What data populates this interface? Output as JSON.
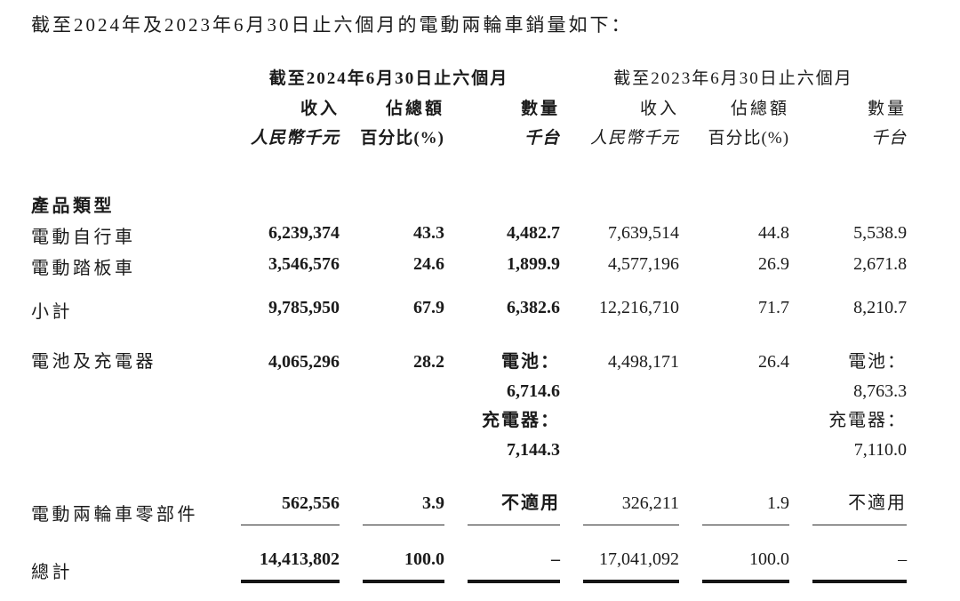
{
  "title": "截至2024年及2023年6月30日止六個月的電動兩輪車銷量如下：",
  "colors": {
    "text": "#1b1b1b",
    "background": "#ffffff"
  },
  "table": {
    "periods": [
      {
        "label": "截至2024年6月30日止六個月"
      },
      {
        "label": "截至2023年6月30日止六個月"
      }
    ],
    "col_headers": [
      "收入",
      "佔總額",
      "數量",
      "收入",
      "佔總額",
      "數量"
    ],
    "unit_headers": [
      "人民幣千元",
      "百分比(%)",
      "千台",
      "人民幣千元",
      "百分比(%)",
      "千台"
    ],
    "section_label": "產品類型",
    "row_ebike": {
      "label": "電動自行車",
      "c": [
        "6,239,374",
        "43.3",
        "4,482.7",
        "7,639,514",
        "44.8",
        "5,538.9"
      ]
    },
    "row_escooter": {
      "label": "電動踏板車",
      "c": [
        "3,546,576",
        "24.6",
        "1,899.9",
        "4,577,196",
        "26.9",
        "2,671.8"
      ]
    },
    "row_subtotal": {
      "label": "小計",
      "c": [
        "9,785,950",
        "67.9",
        "6,382.6",
        "12,216,710",
        "71.7",
        "8,210.7"
      ]
    },
    "row_battery": {
      "label": "電池及充電器",
      "rev2024": "4,065,296",
      "pct2024": "28.2",
      "vol2024": [
        "電池：",
        "6,714.6",
        "充電器：",
        "7,144.3"
      ],
      "rev2023": "4,498,171",
      "pct2023": "26.4",
      "vol2023": [
        "電池：",
        "8,763.3",
        "充電器：",
        "7,110.0"
      ]
    },
    "row_parts": {
      "label": "電動兩輪車零部件",
      "c": [
        "562,556",
        "3.9",
        "不適用",
        "326,211",
        "1.9",
        "不適用"
      ]
    },
    "row_total": {
      "label": "總計",
      "c": [
        "14,413,802",
        "100.0",
        "–",
        "17,041,092",
        "100.0",
        "–"
      ]
    }
  }
}
